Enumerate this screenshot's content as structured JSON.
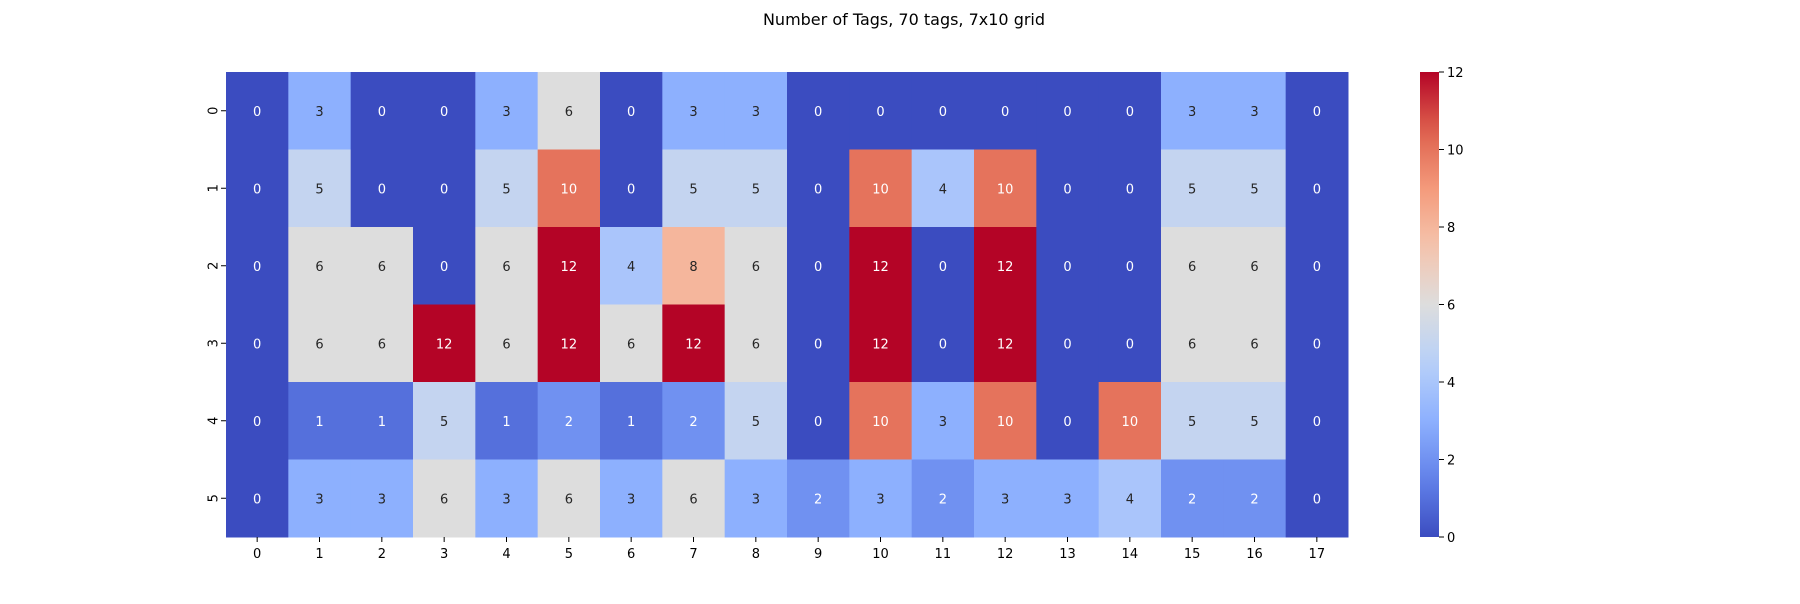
{
  "chart_data": {
    "type": "heatmap",
    "title": "Number of Tags, 70 tags, 7x10 grid",
    "xlabel": "",
    "ylabel": "",
    "x_ticks": [
      "0",
      "1",
      "2",
      "3",
      "4",
      "5",
      "6",
      "7",
      "8",
      "9",
      "10",
      "11",
      "12",
      "13",
      "14",
      "15",
      "16",
      "17"
    ],
    "y_ticks": [
      "0",
      "1",
      "2",
      "3",
      "4",
      "5"
    ],
    "values": [
      [
        0,
        3,
        0,
        0,
        3,
        6,
        0,
        3,
        3,
        0,
        0,
        0,
        0,
        0,
        0,
        3,
        3,
        0
      ],
      [
        0,
        5,
        0,
        0,
        5,
        10,
        0,
        5,
        5,
        0,
        10,
        4,
        10,
        0,
        0,
        5,
        5,
        0
      ],
      [
        0,
        6,
        6,
        0,
        6,
        12,
        4,
        8,
        6,
        0,
        12,
        0,
        12,
        0,
        0,
        6,
        6,
        0
      ],
      [
        0,
        6,
        6,
        12,
        6,
        12,
        6,
        12,
        6,
        0,
        12,
        0,
        12,
        0,
        0,
        6,
        6,
        0
      ],
      [
        0,
        1,
        1,
        5,
        1,
        2,
        1,
        2,
        5,
        0,
        10,
        3,
        10,
        0,
        10,
        5,
        5,
        0
      ],
      [
        0,
        3,
        3,
        6,
        3,
        6,
        3,
        6,
        3,
        2,
        3,
        2,
        3,
        3,
        4,
        2,
        2,
        0
      ]
    ],
    "colormap": "coolwarm",
    "vmin": 0,
    "vmax": 12,
    "colorbar_ticks": [
      0,
      2,
      4,
      6,
      8,
      10,
      12
    ],
    "annotations": true,
    "grid": false
  }
}
